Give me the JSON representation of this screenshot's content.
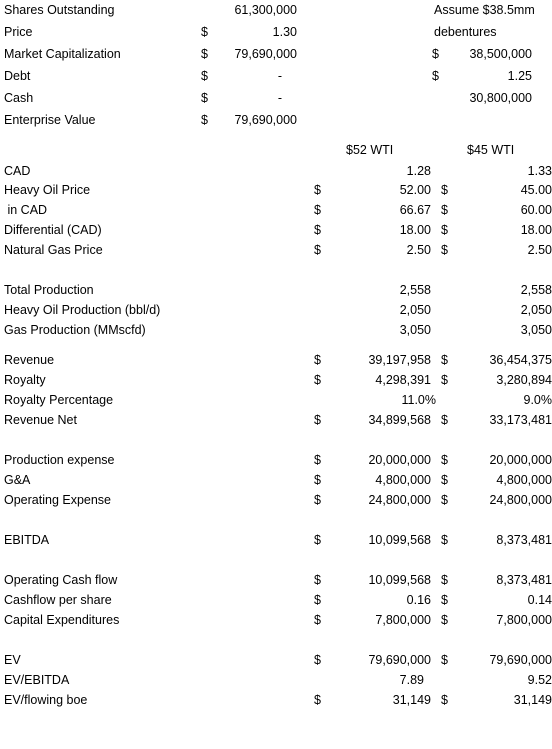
{
  "top": {
    "shares_outstanding": {
      "label": "Shares Outstanding",
      "value": "61,300,000"
    },
    "price": {
      "label": "Price",
      "dollar": "$",
      "value": "1.30"
    },
    "market_cap": {
      "label": "Market Capitalization",
      "dollar": "$",
      "value": "79,690,000"
    },
    "debt": {
      "label": "Debt",
      "dollar": "$",
      "value": "-"
    },
    "cash": {
      "label": "Cash",
      "dollar": "$",
      "value": "-"
    },
    "enterprise_value": {
      "label": "Enterprise Value",
      "dollar": "$",
      "value": "79,690,000"
    }
  },
  "assumption": {
    "line1": "Assume $38.5mm",
    "line2": "debentures",
    "amount_dollar": "$",
    "amount": "38,500,000",
    "price_dollar": "$",
    "price": "1.25",
    "shares": "30,800,000"
  },
  "scenario_headers": {
    "a": "$52 WTI",
    "b": "$45 WTI"
  },
  "rows": [
    {
      "label": "CAD",
      "d2": "",
      "v2": "1.28",
      "d3": "",
      "v3": "1.33"
    },
    {
      "label": "Heavy Oil Price",
      "d2": "$",
      "v2": "52.00",
      "d3": "$",
      "v3": "45.00"
    },
    {
      "label": " in CAD",
      "d2": "$",
      "v2": "66.67",
      "d3": "$",
      "v3": "60.00"
    },
    {
      "label": "Differential (CAD)",
      "d2": "$",
      "v2": "18.00",
      "d3": "$",
      "v3": "18.00"
    },
    {
      "label": "Natural Gas Price",
      "d2": "$",
      "v2": "2.50",
      "d3": "$",
      "v3": "2.50"
    },
    {
      "label": "Total Production",
      "d2": "",
      "v2": "2,558",
      "d3": "",
      "v3": "2,558"
    },
    {
      "label": "Heavy Oil Production (bbl/d)",
      "d2": "",
      "v2": "2,050",
      "d3": "",
      "v3": "2,050"
    },
    {
      "label": "Gas Production (MMscfd)",
      "d2": "",
      "v2": "3,050",
      "d3": "",
      "v3": "3,050"
    },
    {
      "label": "Revenue",
      "d2": "$",
      "v2": "39,197,958",
      "d3": "$",
      "v3": "36,454,375"
    },
    {
      "label": "Royalty",
      "d2": "$",
      "v2": "4,298,391",
      "d3": "$",
      "v3": "3,280,894"
    },
    {
      "label": "Royalty Percentage",
      "d2": "",
      "v2": "11.0%",
      "d3": "",
      "v3": "9.0%"
    },
    {
      "label": "Revenue Net",
      "d2": "$",
      "v2": "34,899,568",
      "d3": "$",
      "v3": "33,173,481"
    },
    {
      "label": "Production expense",
      "d2": "$",
      "v2": "20,000,000",
      "d3": "$",
      "v3": "20,000,000"
    },
    {
      "label": "G&A",
      "d2": "$",
      "v2": "4,800,000",
      "d3": "$",
      "v3": "4,800,000"
    },
    {
      "label": "Operating Expense",
      "d2": "$",
      "v2": "24,800,000",
      "d3": "$",
      "v3": "24,800,000"
    },
    {
      "label": "EBITDA",
      "d2": "$",
      "v2": "10,099,568",
      "d3": "$",
      "v3": "8,373,481"
    },
    {
      "label": "Operating Cash flow",
      "d2": "$",
      "v2": "10,099,568",
      "d3": "$",
      "v3": "8,373,481"
    },
    {
      "label": "Cashflow per share",
      "d2": "$",
      "v2": "0.16",
      "d3": "$",
      "v3": "0.14"
    },
    {
      "label": "Capital Expenditures",
      "d2": "$",
      "v2": "7,800,000",
      "d3": "$",
      "v3": "7,800,000"
    },
    {
      "label": "EV",
      "d2": "$",
      "v2": "79,690,000",
      "d3": "$",
      "v3": "79,690,000"
    },
    {
      "label": "EV/EBITDA",
      "d2": "",
      "v2": "7.89",
      "d3": "",
      "v3": "9.52"
    },
    {
      "label": "EV/flowing boe",
      "d2": "$",
      "v2": "31,149",
      "d3": "$",
      "v3": "31,149"
    }
  ]
}
